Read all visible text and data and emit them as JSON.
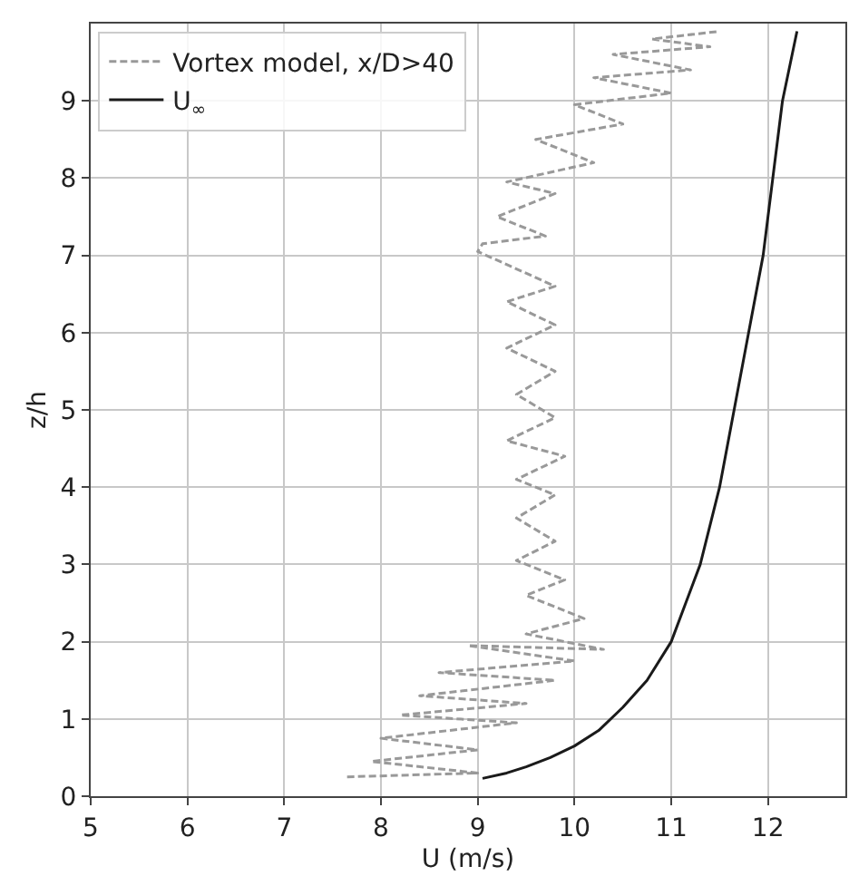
{
  "chart_data": {
    "type": "line",
    "xlabel": "U (m/s)",
    "ylabel": "z/h",
    "xlim": [
      5,
      12.8
    ],
    "ylim": [
      0,
      10
    ],
    "xticks": [
      5,
      6,
      7,
      8,
      9,
      10,
      11,
      12
    ],
    "yticks": [
      0,
      1,
      2,
      3,
      4,
      5,
      6,
      7,
      8,
      9
    ],
    "grid": true,
    "legend": "top left",
    "series": [
      {
        "name": "Vortex model, x/D>40",
        "color": "#999999",
        "line_style": "dashed",
        "x": [
          7.65,
          9.0,
          7.9,
          9.0,
          8.0,
          9.4,
          8.2,
          9.5,
          8.4,
          9.8,
          8.6,
          10.0,
          8.9,
          10.3,
          9.5,
          10.1,
          9.5,
          9.9,
          9.4,
          9.8,
          9.4,
          9.8,
          9.4,
          9.9,
          9.3,
          9.8,
          9.4,
          9.8,
          9.3,
          9.8,
          9.3,
          9.8,
          9.0,
          9.05,
          9.7,
          9.2,
          9.8,
          9.3,
          10.2,
          9.6,
          10.5,
          10.0,
          11.0,
          10.2,
          11.2,
          10.4,
          11.4,
          10.8,
          11.5
        ],
        "values": [
          0.25,
          0.3,
          0.45,
          0.6,
          0.75,
          0.95,
          1.05,
          1.2,
          1.3,
          1.5,
          1.6,
          1.75,
          1.95,
          1.9,
          2.1,
          2.3,
          2.6,
          2.8,
          3.05,
          3.3,
          3.6,
          3.9,
          4.1,
          4.4,
          4.6,
          4.9,
          5.2,
          5.5,
          5.8,
          6.1,
          6.4,
          6.6,
          7.05,
          7.15,
          7.25,
          7.5,
          7.8,
          7.95,
          8.2,
          8.5,
          8.7,
          8.95,
          9.1,
          9.3,
          9.4,
          9.6,
          9.7,
          9.8,
          9.9
        ]
      },
      {
        "name": "U$_{∞}$",
        "color": "#1a1a1a",
        "line_style": "solid",
        "x": [
          9.05,
          9.3,
          9.5,
          9.75,
          10.0,
          10.25,
          10.5,
          10.75,
          11.0,
          11.15,
          11.3,
          11.5,
          11.65,
          11.8,
          11.95,
          12.05,
          12.15,
          12.3
        ],
        "values": [
          0.23,
          0.3,
          0.38,
          0.5,
          0.65,
          0.85,
          1.15,
          1.5,
          2.0,
          2.5,
          3.0,
          4.0,
          5.0,
          6.0,
          7.0,
          8.0,
          9.0,
          9.9
        ]
      }
    ]
  }
}
